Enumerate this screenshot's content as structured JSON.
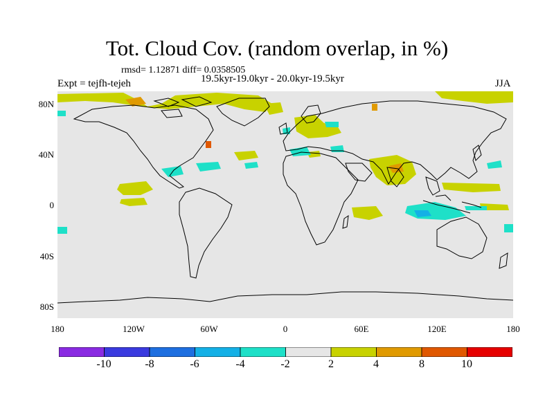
{
  "title": "Tot. Cloud Cov. (random overlap, in %)",
  "stats": "rmsd= 1.12871 diff= 0.0358505",
  "subtitle": "19.5kyr-19.0kyr - 20.0kyr-19.5kyr",
  "experiment": "Expt = tejfh-tejeh",
  "season": "JJA",
  "map": {
    "lat_ticks": [
      "80N",
      "40N",
      "0",
      "40S",
      "80S"
    ],
    "lon_ticks": [
      "180",
      "120W",
      "60W",
      "0",
      "60E",
      "120E",
      "180"
    ],
    "background_color": "#e6e6e6",
    "coast_color": "#000000"
  },
  "colorbar": {
    "colors": [
      "#8a2be2",
      "#3a3adf",
      "#1e6fe0",
      "#14b0e6",
      "#1ee0c8",
      "#e6e6e6",
      "#c8d200",
      "#e09a00",
      "#e05800",
      "#e60000"
    ],
    "labels": [
      "-10",
      "-8",
      "-6",
      "-4",
      "-2",
      "2",
      "4",
      "8",
      "10"
    ]
  }
}
